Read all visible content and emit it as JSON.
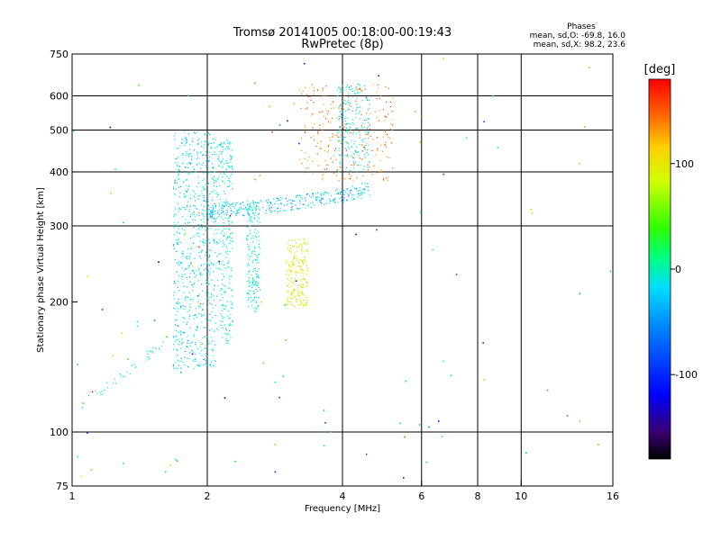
{
  "title": "Tromsø 20141005 00:18:00-00:19:43",
  "subtitle": "RwPretec (8p)",
  "stats": {
    "heading": "Phases",
    "line_o": "mean, sd,O: -69.8, 16.0",
    "line_x": "mean, sd,X:  98.2, 23.6"
  },
  "chart_data": {
    "type": "scatter",
    "xlabel": "Frequency [MHz]",
    "ylabel": "Stationary phase Virtual Height [km]",
    "xscale": "log",
    "yscale": "log",
    "xlim": [
      1,
      16
    ],
    "ylim": [
      75,
      750
    ],
    "xticks": [
      1,
      2,
      4,
      6,
      8,
      10,
      16
    ],
    "yticks": [
      75,
      100,
      200,
      300,
      400,
      500,
      600,
      750
    ],
    "xgrid": [
      2,
      4,
      6,
      8,
      10
    ],
    "ygrid": [
      100,
      300,
      400,
      500,
      600
    ],
    "grid": true,
    "colorbar": {
      "label": "[deg]",
      "min": -180,
      "max": 180,
      "ticks": [
        100,
        0,
        -100
      ],
      "colormap": "rainbow"
    },
    "point_groups": [
      {
        "name": "low-frequency tail",
        "freq_range": [
          1.05,
          1.6
        ],
        "height_range": [
          115,
          160
        ],
        "phase": -60,
        "n": 40
      },
      {
        "name": "E/F1 column 1.7-2.1 MHz",
        "freq_range": [
          1.68,
          2.1
        ],
        "height_range": [
          140,
          500
        ],
        "phase": -70,
        "n": 700
      },
      {
        "name": "column 2.1-2.3 MHz",
        "freq_range": [
          2.1,
          2.28
        ],
        "height_range": [
          160,
          480
        ],
        "phase": -60,
        "n": 260
      },
      {
        "name": "column 2.45-2.6 MHz",
        "freq_range": [
          2.45,
          2.62
        ],
        "height_range": [
          190,
          340
        ],
        "phase": -55,
        "n": 180
      },
      {
        "name": "X-mode patch 3.0-3.3 MHz",
        "freq_range": [
          3.0,
          3.35
        ],
        "height_range": [
          195,
          280
        ],
        "phase": 95,
        "n": 220
      },
      {
        "name": "O-mode trace",
        "freq_range": [
          2.0,
          4.6
        ],
        "height_range": [
          320,
          420
        ],
        "phase": -80,
        "n": 320
      },
      {
        "name": "O-mode cusp",
        "freq_range": [
          3.9,
          4.6
        ],
        "height_range": [
          400,
          640
        ],
        "phase": -60,
        "n": 200
      },
      {
        "name": "X-mode trace",
        "freq_range": [
          3.2,
          5.2
        ],
        "height_range": [
          380,
          640
        ],
        "phase": 140,
        "n": 260
      },
      {
        "name": "sparse noise",
        "freq_range": [
          1.0,
          16.0
        ],
        "height_range": [
          75,
          750
        ],
        "phase": null,
        "n": 120
      }
    ]
  }
}
